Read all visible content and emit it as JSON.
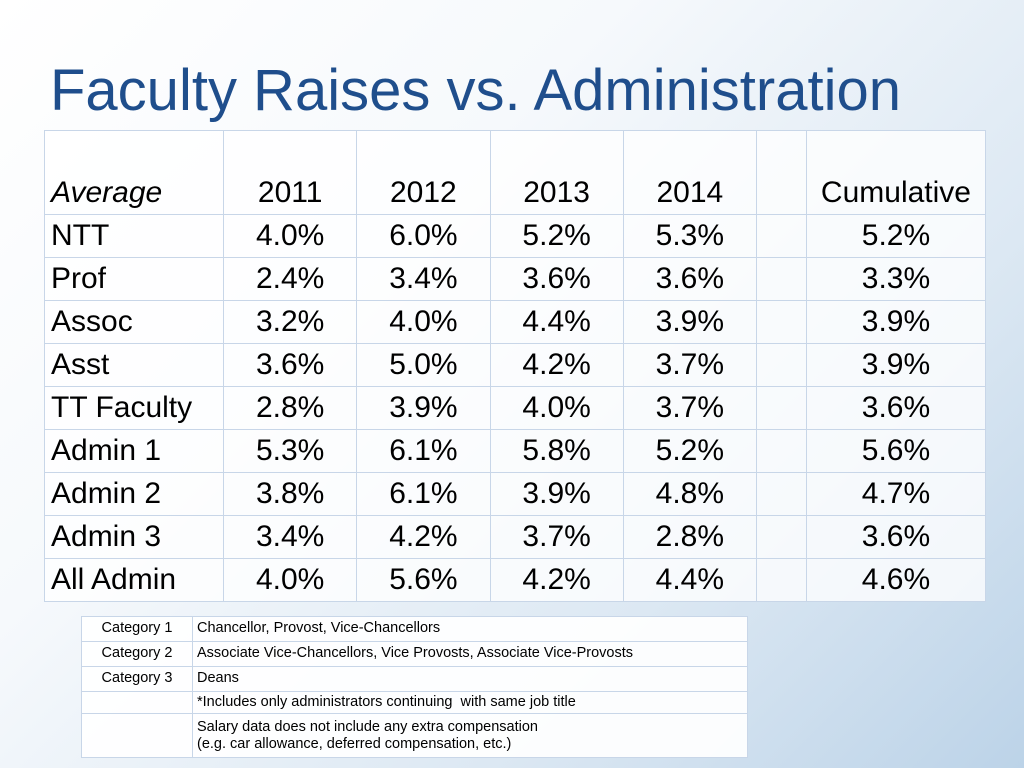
{
  "title": "Faculty Raises vs. Administration",
  "table": {
    "header": {
      "label": "Average",
      "years": [
        "2011",
        "2012",
        "2013",
        "2014"
      ],
      "cumulative": "Cumulative"
    },
    "rows": [
      {
        "label": "NTT",
        "values": [
          "4.0%",
          "6.0%",
          "5.2%",
          "5.3%"
        ],
        "cumulative": "5.2%"
      },
      {
        "label": "Prof",
        "values": [
          "2.4%",
          "3.4%",
          "3.6%",
          "3.6%"
        ],
        "cumulative": "3.3%"
      },
      {
        "label": "Assoc",
        "values": [
          "3.2%",
          "4.0%",
          "4.4%",
          "3.9%"
        ],
        "cumulative": "3.9%"
      },
      {
        "label": "Asst",
        "values": [
          "3.6%",
          "5.0%",
          "4.2%",
          "3.7%"
        ],
        "cumulative": "3.9%"
      },
      {
        "label": "TT Faculty",
        "values": [
          "2.8%",
          "3.9%",
          "4.0%",
          "3.7%"
        ],
        "cumulative": "3.6%"
      },
      {
        "label": "Admin 1",
        "values": [
          "5.3%",
          "6.1%",
          "5.8%",
          "5.2%"
        ],
        "cumulative": "5.6%"
      },
      {
        "label": "Admin 2",
        "values": [
          "3.8%",
          "6.1%",
          "3.9%",
          "4.8%"
        ],
        "cumulative": "4.7%"
      },
      {
        "label": "Admin 3",
        "values": [
          "3.4%",
          "4.2%",
          "3.7%",
          "2.8%"
        ],
        "cumulative": "3.6%"
      },
      {
        "label": "All Admin",
        "values": [
          "4.0%",
          "5.6%",
          "4.2%",
          "4.4%"
        ],
        "cumulative": "4.6%"
      }
    ]
  },
  "legend": {
    "rows": [
      {
        "category": "Category 1",
        "description": "Chancellor, Provost, Vice-Chancellors"
      },
      {
        "category": "Category 2",
        "description": "Associate Vice-Chancellors, Vice Provosts, Associate Vice-Provosts"
      },
      {
        "category": "Category 3",
        "description": "Deans"
      }
    ],
    "note_includes": "*Includes only administrators continuing  with same job title",
    "note_salary_line1": "Salary data does not include any extra compensation",
    "note_salary_line2": "(e.g. car allowance, deferred compensation, etc.)"
  }
}
